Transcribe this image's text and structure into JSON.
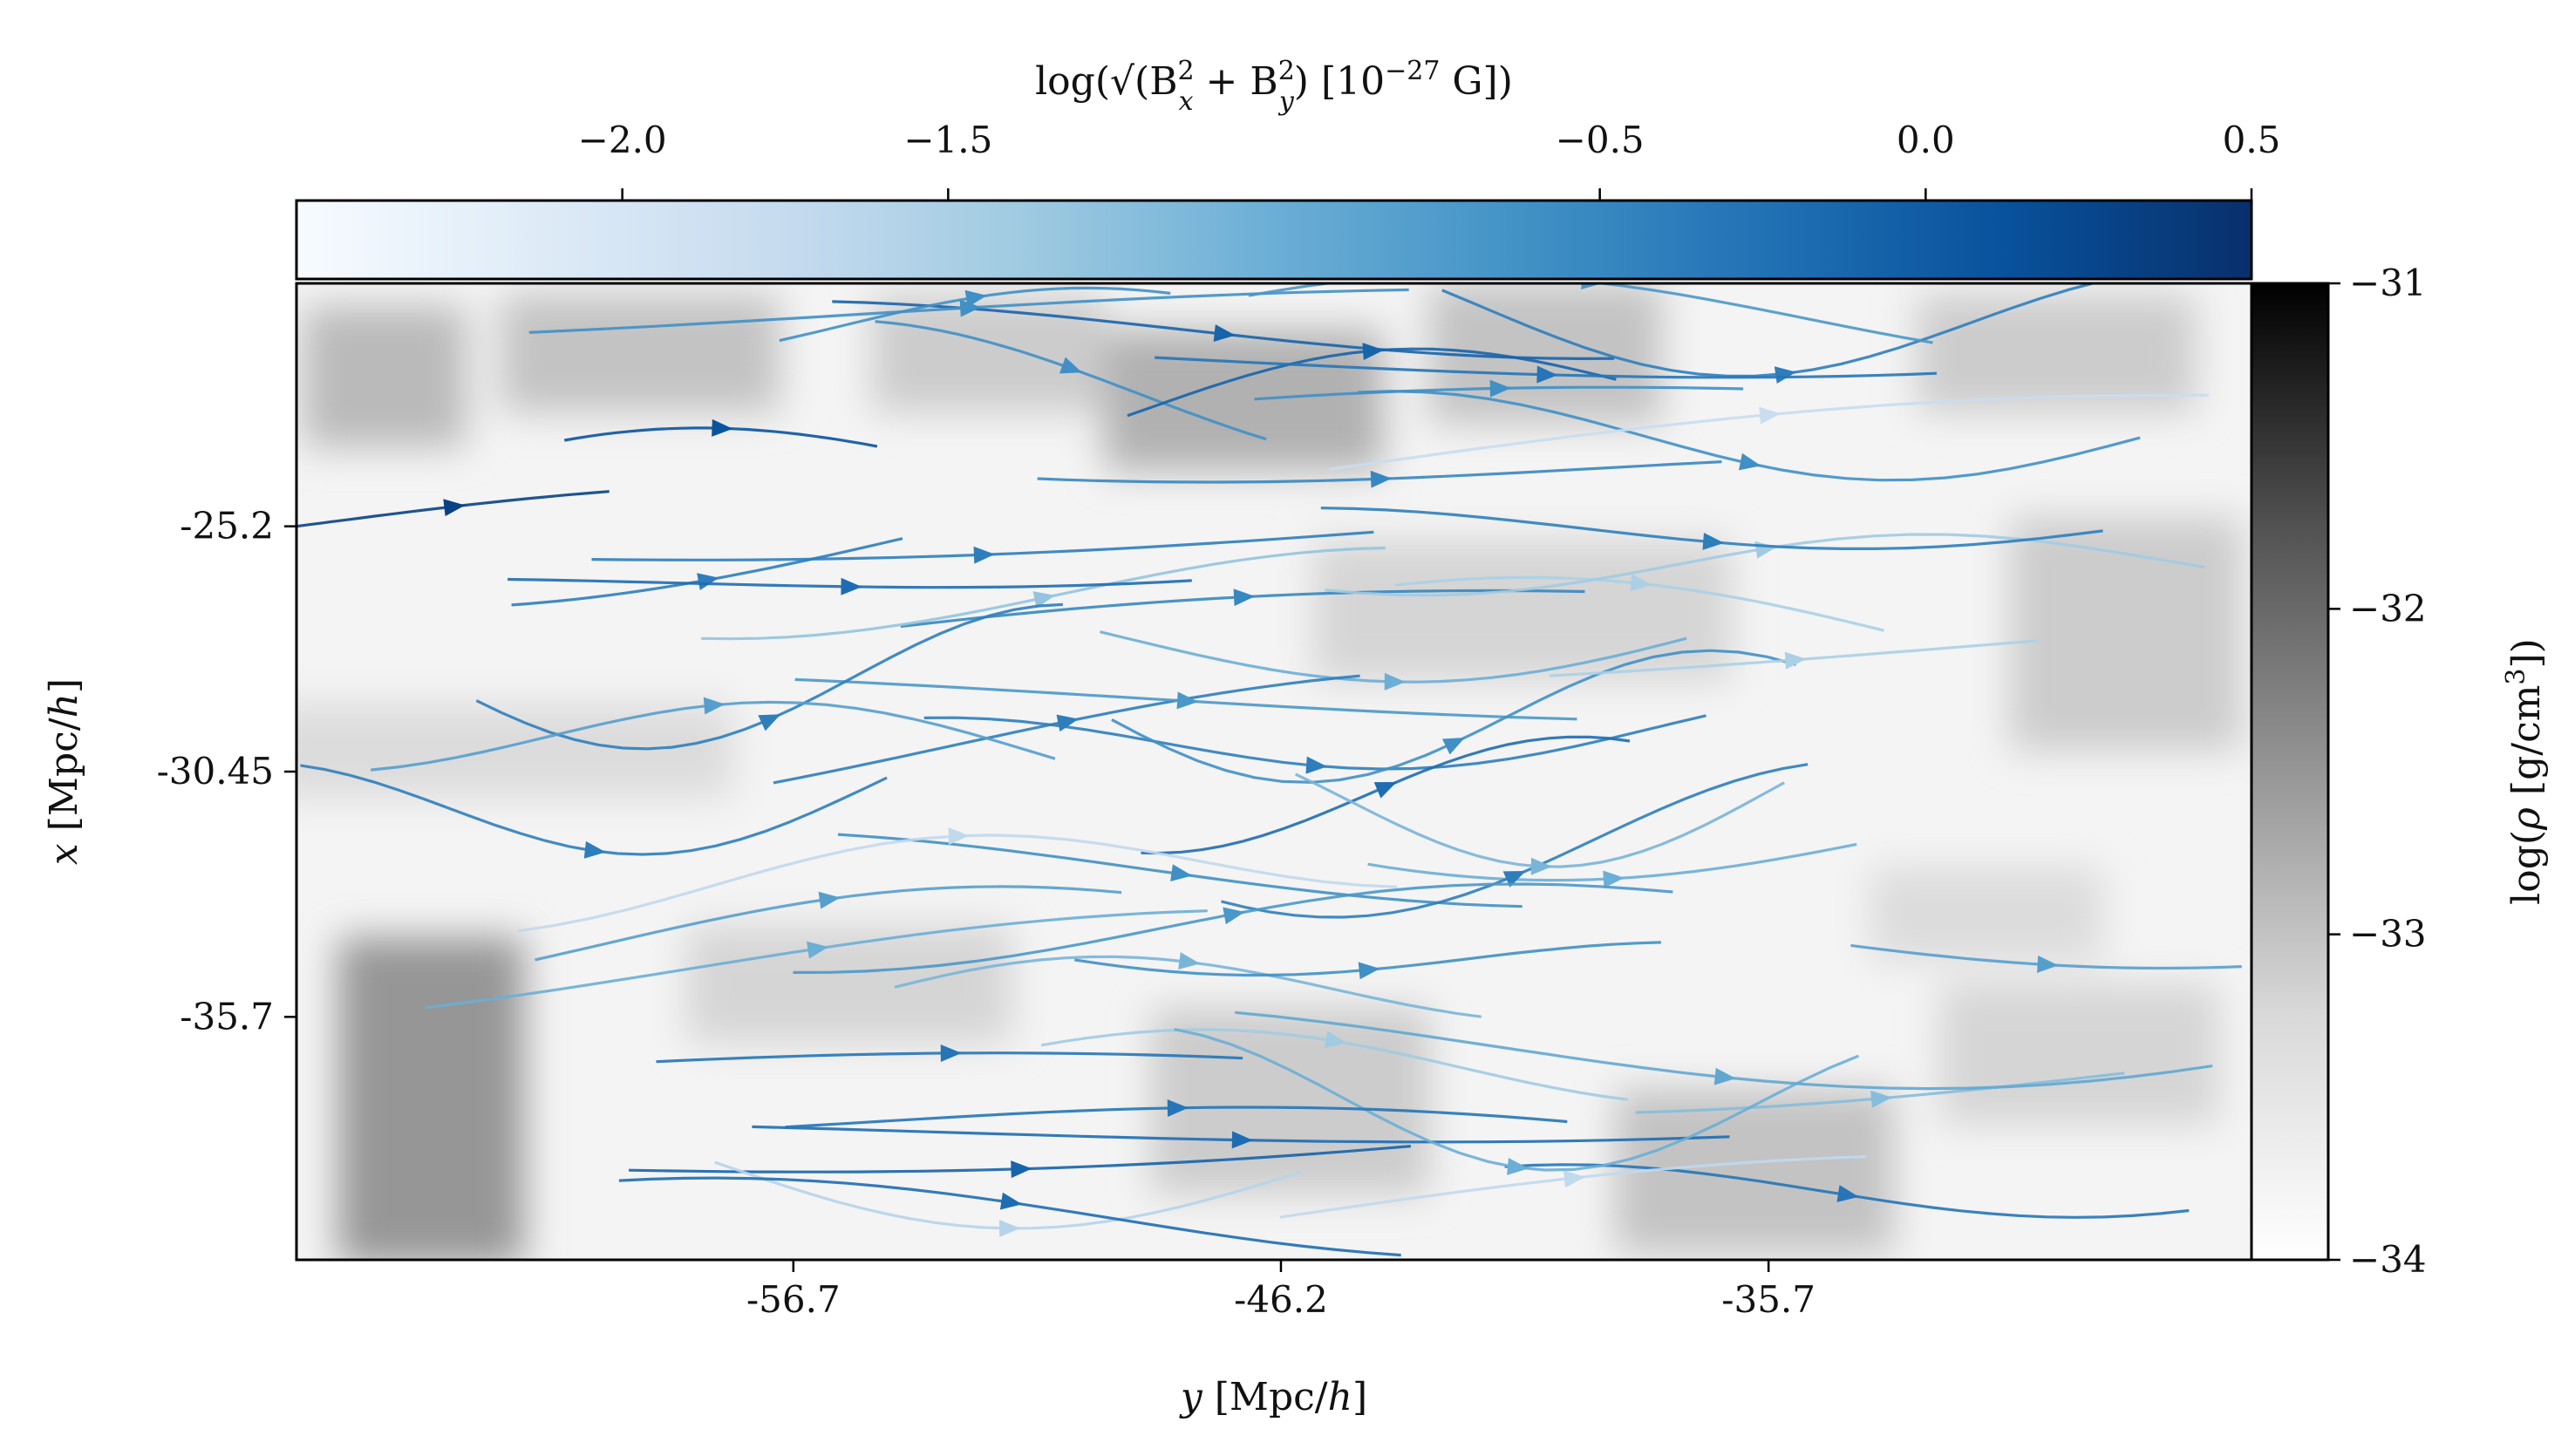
{
  "chart_data": {
    "type": "heatmap",
    "subtype": "density map with magnetic field streamlines",
    "xlabel": "y [Mpc/h]",
    "ylabel": "x [Mpc/h]",
    "x_ticks": [
      "-56.7",
      "-46.2",
      "-35.7"
    ],
    "x_tick_values": [
      -56.7,
      -46.2,
      -35.7
    ],
    "y_ticks": [
      "-25.2",
      "-30.45",
      "-35.7"
    ],
    "y_tick_values": [
      -25.2,
      -30.45,
      -35.7
    ],
    "xlim": [
      -67.4,
      -25.3
    ],
    "ylim": [
      -40.9,
      -20.0
    ],
    "density_colorbar": {
      "label": "log(ρ [g/cm³])",
      "ticks": [
        "−31",
        "−32",
        "−33",
        "−34"
      ],
      "tick_values": [
        -31,
        -32,
        -33,
        -34
      ],
      "range": [
        -34,
        -31
      ],
      "colormap": "Greys"
    },
    "field_colorbar": {
      "label": "log(√(B²x + B²y) [10⁻²⁷ G])",
      "ticks": [
        "−2.0",
        "−1.5",
        "−0.5",
        "0.0",
        "0.5"
      ],
      "tick_values": [
        -2.0,
        -1.5,
        -0.5,
        0.0,
        0.5
      ],
      "range": [
        -2.5,
        0.5
      ],
      "colormap": "Blues"
    },
    "grid": false,
    "density_cells": [
      {
        "y": -65.5,
        "x": -22.0,
        "w": 3.5,
        "h": 3.0,
        "v": -32.9
      },
      {
        "y": -60.0,
        "x": -21.5,
        "w": 6.0,
        "h": 2.5,
        "v": -33.0
      },
      {
        "y": -52.5,
        "x": -21.5,
        "w": 5.0,
        "h": 2.5,
        "v": -33.1
      },
      {
        "y": -47.0,
        "x": -22.5,
        "w": 6.0,
        "h": 3.0,
        "v": -32.8
      },
      {
        "y": -40.5,
        "x": -21.5,
        "w": 5.0,
        "h": 3.0,
        "v": -33.0
      },
      {
        "y": -29.5,
        "x": -21.5,
        "w": 6.0,
        "h": 2.5,
        "v": -33.1
      },
      {
        "y": -63.0,
        "x": -30.0,
        "w": 10.0,
        "h": 2.0,
        "v": -33.3
      },
      {
        "y": -41.0,
        "x": -27.0,
        "w": 9.0,
        "h": 3.0,
        "v": -33.2
      },
      {
        "y": -28.0,
        "x": -27.5,
        "w": 5.0,
        "h": 5.0,
        "v": -33.1
      },
      {
        "y": -64.5,
        "x": -37.5,
        "w": 4.0,
        "h": 7.0,
        "v": -32.5
      },
      {
        "y": -55.5,
        "x": -35.0,
        "w": 7.0,
        "h": 2.5,
        "v": -33.2
      },
      {
        "y": -46.0,
        "x": -37.5,
        "w": 6.0,
        "h": 4.0,
        "v": -33.1
      },
      {
        "y": -36.0,
        "x": -39.0,
        "w": 6.0,
        "h": 3.5,
        "v": -33.0
      },
      {
        "y": -29.0,
        "x": -36.5,
        "w": 6.0,
        "h": 3.0,
        "v": -33.2
      },
      {
        "y": -31.0,
        "x": -33.5,
        "w": 5.0,
        "h": 2.0,
        "v": -33.3
      }
    ],
    "field_streamlines": [
      {
        "x0": -25.2,
        "slope": 0.01,
        "amp": 0.8,
        "curve": 0.15,
        "len": 0.16,
        "v": 0.3
      },
      {
        "x0": -24.2,
        "slope": 0.04,
        "amp": 1.0,
        "curve": 0.25,
        "len": 0.16,
        "v": 0.1
      },
      {
        "x0": -21.3,
        "slope": 0.04,
        "amp": 1.0,
        "curve": 0.15,
        "len": 0.4,
        "v": -0.1
      },
      {
        "x0": -27.6,
        "slope": 0.01,
        "amp": 1.0,
        "curve": 0.25,
        "len": 0.3,
        "v": -1.0
      },
      {
        "x0": -31.6,
        "slope": -0.02,
        "amp": 1.1,
        "curve": 0.2,
        "len": 0.25,
        "v": -1.0
      },
      {
        "x0": -36.5,
        "slope": -0.01,
        "amp": 1.3,
        "curve": 0.1,
        "len": 0.25,
        "v": -1.2
      },
      {
        "x0": -34.2,
        "slope": 0.03,
        "amp": 1.0,
        "curve": 0.2,
        "len": 0.3,
        "v": -0.8
      },
      {
        "x0": -28.0,
        "slope": 0.04,
        "amp": 1.0,
        "curve": 0.1,
        "len": 0.35,
        "v": -0.5
      },
      {
        "x0": -22.2,
        "slope": -0.03,
        "amp": 1.4,
        "curve": 0.25,
        "len": 0.2,
        "v": -0.6
      },
      {
        "x0": -38.3,
        "slope": 0.03,
        "amp": 0.6,
        "curve": 0.1,
        "len": 0.5,
        "v": -0.2
      },
      {
        "x0": -38.6,
        "slope": 0.04,
        "amp": 0.7,
        "curve": 0.1,
        "len": 0.4,
        "v": -0.1
      },
      {
        "x0": -26.4,
        "slope": -0.03,
        "amp": 1.2,
        "curve": 0.2,
        "len": 0.35,
        "v": -1.3
      },
      {
        "x0": -30.1,
        "slope": 0.05,
        "amp": 1.1,
        "curve": 0.15,
        "len": 0.3,
        "v": -0.4
      },
      {
        "x0": -36.6,
        "slope": -0.02,
        "amp": 0.7,
        "curve": 0.3,
        "len": 0.3,
        "v": -1.4
      },
      {
        "x0": -39.7,
        "slope": 0.04,
        "amp": 0.8,
        "curve": 0.25,
        "len": 0.35,
        "v": -0.3
      },
      {
        "x0": -29.0,
        "slope": 0.02,
        "amp": 0.8,
        "curve": 0.1,
        "len": 0.4,
        "v": -0.7
      },
      {
        "x0": -28.5,
        "slope": 0.01,
        "amp": 1.5,
        "curve": 0.35,
        "len": 0.3,
        "v": -0.4
      },
      {
        "x0": -23.7,
        "slope": -0.02,
        "amp": 0.5,
        "curve": 0.15,
        "len": 0.35,
        "v": -0.5
      },
      {
        "x0": -34.9,
        "slope": 0.04,
        "amp": 0.8,
        "curve": 0.15,
        "len": 0.4,
        "v": -1.0
      },
      {
        "x0": -40.2,
        "slope": 0.01,
        "amp": 1.4,
        "curve": 0.1,
        "len": 0.3,
        "v": -1.7
      },
      {
        "x0": -23.3,
        "slope": 0.03,
        "amp": 0.9,
        "curve": 0.1,
        "len": 0.25,
        "v": -0.6
      },
      {
        "x0": -32.8,
        "slope": 0.04,
        "amp": 1.2,
        "curve": 0.15,
        "len": 0.35,
        "v": -0.6
      },
      {
        "x0": -38.8,
        "slope": -0.02,
        "amp": 1.3,
        "curve": 0.25,
        "len": 0.3,
        "v": -1.6
      },
      {
        "x0": -25.4,
        "slope": 0.02,
        "amp": 0.6,
        "curve": 0.1,
        "len": 0.4,
        "v": -0.4
      },
      {
        "x0": -29.6,
        "slope": -0.03,
        "amp": 0.9,
        "curve": 0.3,
        "len": 0.35,
        "v": -0.8
      },
      {
        "x0": -22.7,
        "slope": 0.05,
        "amp": 1.0,
        "curve": 0.3,
        "len": 0.25,
        "v": -0.1
      },
      {
        "x0": -27.3,
        "slope": -0.03,
        "amp": 1.1,
        "curve": 0.2,
        "len": 0.25,
        "v": -1.5
      },
      {
        "x0": -37.4,
        "slope": -0.01,
        "amp": 1.5,
        "curve": 0.35,
        "len": 0.35,
        "v": -1.0
      },
      {
        "x0": -20.5,
        "slope": -0.03,
        "amp": 1.3,
        "curve": 0.3,
        "len": 0.35,
        "v": -0.4
      },
      {
        "x0": -32.3,
        "slope": 0.05,
        "amp": 1.4,
        "curve": 0.3,
        "len": 0.3,
        "v": -0.4
      },
      {
        "x0": -25.6,
        "slope": 0.04,
        "amp": 1.3,
        "curve": 0.15,
        "len": 0.2,
        "v": -0.4
      },
      {
        "x0": -20.9,
        "slope": 0.0,
        "amp": 0.8,
        "curve": 0.3,
        "len": 0.2,
        "v": -0.6
      },
      {
        "x0": -37.1,
        "slope": -0.02,
        "amp": 0.8,
        "curve": 0.1,
        "len": 0.3,
        "v": -0.3
      },
      {
        "x0": -30.0,
        "slope": 0.03,
        "amp": 0.7,
        "curve": 0.3,
        "len": 0.4,
        "v": -0.4
      },
      {
        "x0": -26.6,
        "slope": 0.05,
        "amp": 0.5,
        "curve": 0.15,
        "len": 0.35,
        "v": -0.2
      },
      {
        "x0": -33.7,
        "slope": 0.02,
        "amp": 1.1,
        "curve": 0.15,
        "len": 0.2,
        "v": -0.8
      },
      {
        "x0": -31.0,
        "slope": 0.01,
        "amp": 1.2,
        "curve": 0.35,
        "len": 0.25,
        "v": -0.2
      },
      {
        "x0": -20.6,
        "slope": -0.01,
        "amp": 0.7,
        "curve": 0.1,
        "len": 0.45,
        "v": -0.6
      },
      {
        "x0": -35.3,
        "slope": 0.02,
        "amp": 0.8,
        "curve": 0.3,
        "len": 0.3,
        "v": -1.1
      },
      {
        "x0": -23.2,
        "slope": -0.01,
        "amp": 0.9,
        "curve": 0.3,
        "len": 0.4,
        "v": -0.6
      },
      {
        "x0": -36.5,
        "slope": 0.03,
        "amp": 1.2,
        "curve": 0.15,
        "len": 0.5,
        "v": -0.9
      },
      {
        "x0": -29.1,
        "slope": -0.02,
        "amp": 1.5,
        "curve": 0.35,
        "len": 0.35,
        "v": -0.6
      },
      {
        "x0": -34.2,
        "slope": 0.05,
        "amp": 0.6,
        "curve": 0.25,
        "len": 0.45,
        "v": -0.7
      },
      {
        "x0": -27.9,
        "slope": 0.02,
        "amp": 0.6,
        "curve": 0.1,
        "len": 0.25,
        "v": -1.5
      },
      {
        "x0": -24.0,
        "slope": 0.03,
        "amp": 1.1,
        "curve": 0.1,
        "len": 0.45,
        "v": -1.8
      },
      {
        "x0": -39.8,
        "slope": -0.02,
        "amp": 0.7,
        "curve": 0.2,
        "len": 0.4,
        "v": -0.2
      },
      {
        "x0": -31.4,
        "slope": 0.05,
        "amp": 1.2,
        "curve": 0.35,
        "len": 0.3,
        "v": -0.4
      },
      {
        "x0": -21.7,
        "slope": 0.04,
        "amp": 0.9,
        "curve": 0.1,
        "len": 0.4,
        "v": -0.3
      },
      {
        "x0": -26.1,
        "slope": 0.01,
        "amp": 0.6,
        "curve": 0.3,
        "len": 0.45,
        "v": -1.4
      },
      {
        "x0": -33.1,
        "slope": 0.05,
        "amp": 0.8,
        "curve": 0.3,
        "len": 0.45,
        "v": -1.7
      },
      {
        "x0": -37.9,
        "slope": -0.03,
        "amp": 0.6,
        "curve": 0.15,
        "len": 0.4,
        "v": -0.3
      },
      {
        "x0": -21.0,
        "slope": 0.02,
        "amp": 1.1,
        "curve": 0.2,
        "len": 0.35,
        "v": -0.7
      },
      {
        "x0": -25.3,
        "slope": 0.01,
        "amp": 0.5,
        "curve": 0.25,
        "len": 0.4,
        "v": -0.4
      },
      {
        "x0": -31.1,
        "slope": 0.02,
        "amp": 1.5,
        "curve": 0.35,
        "len": 0.25,
        "v": -1.1
      },
      {
        "x0": -34.2,
        "slope": -0.03,
        "amp": 0.5,
        "curve": 0.3,
        "len": 0.3,
        "v": -0.6
      }
    ]
  }
}
